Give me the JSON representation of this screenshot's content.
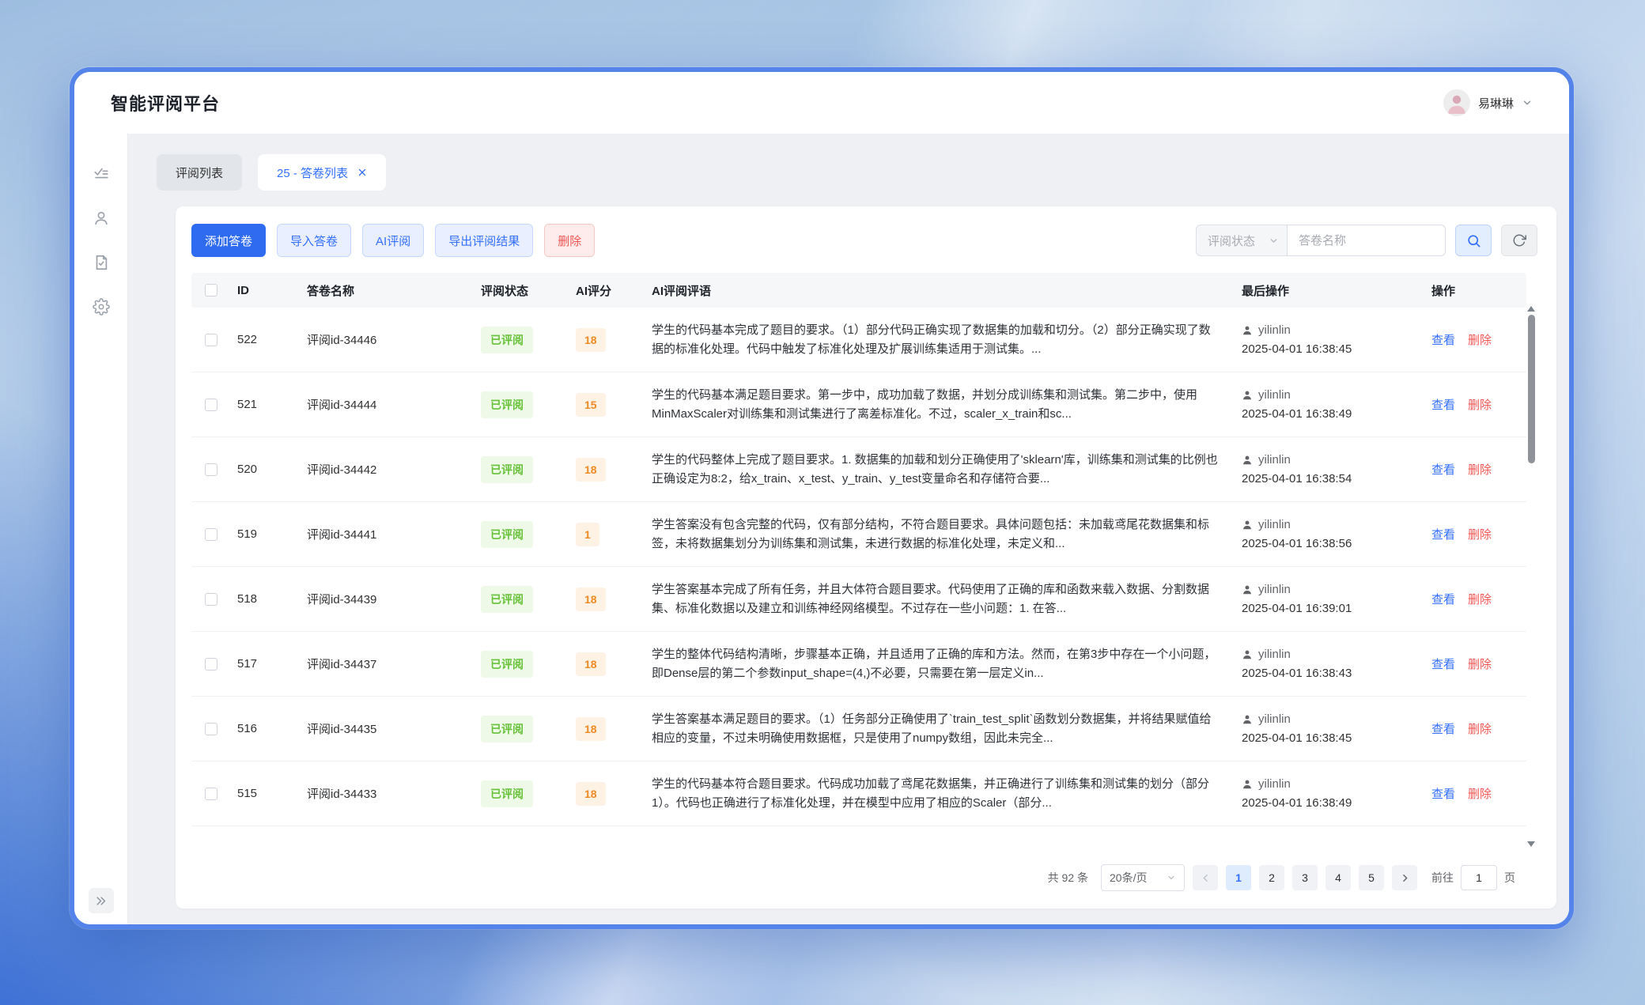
{
  "app": {
    "title": "智能评阅平台",
    "user_name": "易琳琳"
  },
  "icons": {
    "sidebar": [
      "review-checklist",
      "user",
      "document-check",
      "settings"
    ],
    "user_menu": "chevron-down",
    "tab_close": "close-x",
    "filter": "chevron-down",
    "search": "magnifier",
    "refresh": "refresh-arrows",
    "operator": "person",
    "collapse": "double-chevron-right",
    "prev": "chevron-left",
    "next": "chevron-right"
  },
  "tabs": [
    {
      "label": "评阅列表",
      "active": false
    },
    {
      "label": "25 - 答卷列表",
      "active": true,
      "closable": true
    }
  ],
  "toolbar": {
    "add": "添加答卷",
    "import": "导入答卷",
    "ai_review": "AI评阅",
    "export": "导出评阅结果",
    "delete": "删除",
    "status_filter_placeholder": "评阅状态",
    "search_placeholder": "答卷名称"
  },
  "table": {
    "headers": [
      "ID",
      "答卷名称",
      "评阅状态",
      "AI评分",
      "AI评阅评语",
      "最后操作",
      "操作"
    ],
    "rows": [
      {
        "id": "522",
        "name": "评阅id-34446",
        "status": "已评阅",
        "score": "18",
        "comment": "学生的代码基本完成了题目的要求。（1）部分代码正确实现了数据集的加载和切分。（2）部分正确实现了数据的标准化处理。代码中触发了标准化处理及扩展训练集适用于测试集。...",
        "operator": "yilinlin",
        "time": "2025-04-01 16:38:45",
        "view": "查看",
        "del": "删除"
      },
      {
        "id": "521",
        "name": "评阅id-34444",
        "status": "已评阅",
        "score": "15",
        "comment": "学生的代码基本满足题目要求。第一步中，成功加载了数据，并划分成训练集和测试集。第二步中，使用MinMaxScaler对训练集和测试集进行了离差标准化。不过，scaler_x_train和sc...",
        "operator": "yilinlin",
        "time": "2025-04-01 16:38:49",
        "view": "查看",
        "del": "删除"
      },
      {
        "id": "520",
        "name": "评阅id-34442",
        "status": "已评阅",
        "score": "18",
        "comment": "学生的代码整体上完成了题目要求。1. 数据集的加载和划分正确使用了'sklearn'库，训练集和测试集的比例也正确设定为8:2，给x_train、x_test、y_train、y_test变量命名和存储符合要...",
        "operator": "yilinlin",
        "time": "2025-04-01 16:38:54",
        "view": "查看",
        "del": "删除"
      },
      {
        "id": "519",
        "name": "评阅id-34441",
        "status": "已评阅",
        "score": "1",
        "comment": "学生答案没有包含完整的代码，仅有部分结构，不符合题目要求。具体问题包括：未加载鸢尾花数据集和标签，未将数据集划分为训练集和测试集，未进行数据的标准化处理，未定义和...",
        "operator": "yilinlin",
        "time": "2025-04-01 16:38:56",
        "view": "查看",
        "del": "删除"
      },
      {
        "id": "518",
        "name": "评阅id-34439",
        "status": "已评阅",
        "score": "18",
        "comment": "学生答案基本完成了所有任务，并且大体符合题目要求。代码使用了正确的库和函数来载入数据、分割数据集、标准化数据以及建立和训练神经网络模型。不过存在一些小问题：1. 在答...",
        "operator": "yilinlin",
        "time": "2025-04-01 16:39:01",
        "view": "查看",
        "del": "删除"
      },
      {
        "id": "517",
        "name": "评阅id-34437",
        "status": "已评阅",
        "score": "18",
        "comment": "学生的整体代码结构清晰，步骤基本正确，并且适用了正确的库和方法。然而，在第3步中存在一个小问题，即Dense层的第二个参数input_shape=(4,)不必要，只需要在第一层定义in...",
        "operator": "yilinlin",
        "time": "2025-04-01 16:38:43",
        "view": "查看",
        "del": "删除"
      },
      {
        "id": "516",
        "name": "评阅id-34435",
        "status": "已评阅",
        "score": "18",
        "comment": "学生答案基本满足题目的要求。（1）任务部分正确使用了`train_test_split`函数划分数据集，并将结果赋值给相应的变量，不过未明确使用数据框，只是使用了numpy数组，因此未完全...",
        "operator": "yilinlin",
        "time": "2025-04-01 16:38:45",
        "view": "查看",
        "del": "删除"
      },
      {
        "id": "515",
        "name": "评阅id-34433",
        "status": "已评阅",
        "score": "18",
        "comment": "学生的代码基本符合题目要求。代码成功加载了鸢尾花数据集，并正确进行了训练集和测试集的划分（部分1）。代码也正确进行了标准化处理，并在模型中应用了相应的Scaler（部分...",
        "operator": "yilinlin",
        "time": "2025-04-01 16:38:49",
        "view": "查看",
        "del": "删除"
      }
    ]
  },
  "pagination": {
    "total_label": "共 92 条",
    "page_size": "20条/页",
    "pages": [
      "1",
      "2",
      "3",
      "4",
      "5"
    ],
    "active_page": "1",
    "goto_label": "前往",
    "goto_value": "1",
    "page_suffix": "页"
  }
}
